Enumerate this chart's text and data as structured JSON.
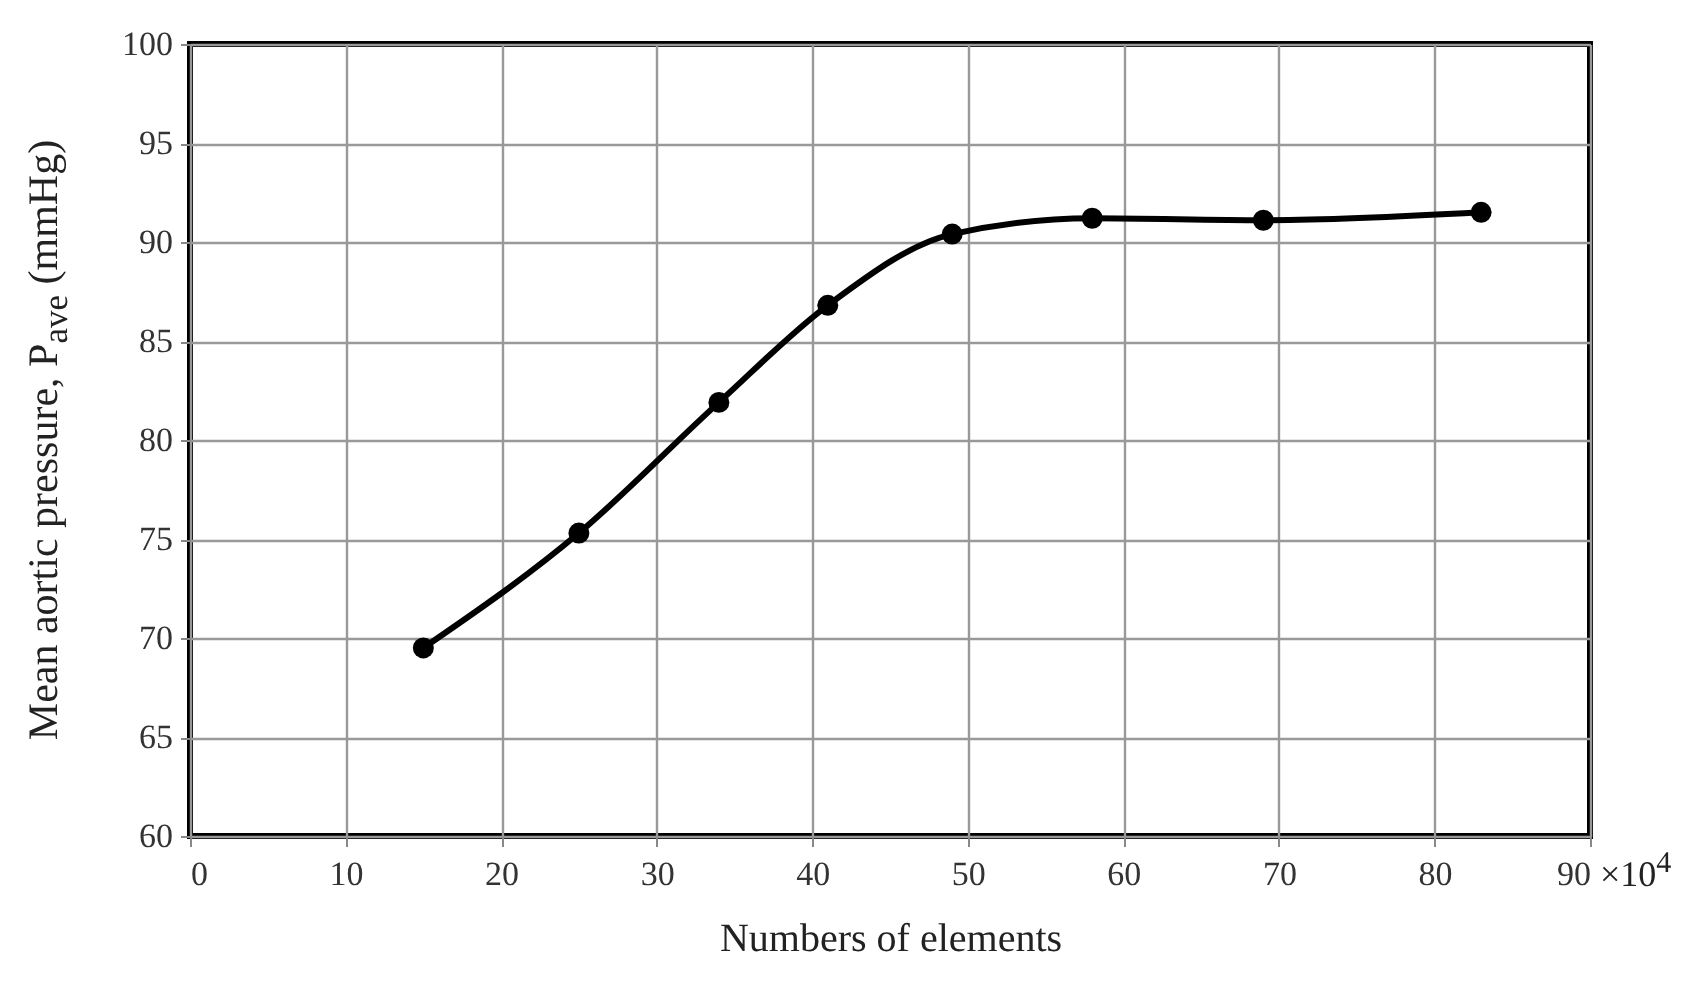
{
  "chart_data": {
    "type": "line",
    "xlabel": "Numbers of elements",
    "ylabel": "Mean aortic pressure, P$_{ave}$ (mmHg)",
    "x": [
      15,
      25,
      34,
      41,
      49,
      58,
      69,
      83
    ],
    "series": [
      {
        "color": "#000000",
        "values": [
          69.5,
          75.3,
          81.9,
          86.8,
          90.4,
          91.2,
          91.1,
          91.5
        ]
      }
    ],
    "xlim": [
      0,
      90
    ],
    "xticks": [
      0,
      10,
      20,
      30,
      40,
      50,
      60,
      70,
      80,
      90
    ],
    "ylim": [
      60,
      100
    ],
    "yticks": [
      60,
      65,
      70,
      75,
      80,
      85,
      90,
      95,
      100
    ],
    "grid": true,
    "marker": "circle",
    "line_style": "solid",
    "annotations": [
      "×10$^{4}$"
    ]
  }
}
